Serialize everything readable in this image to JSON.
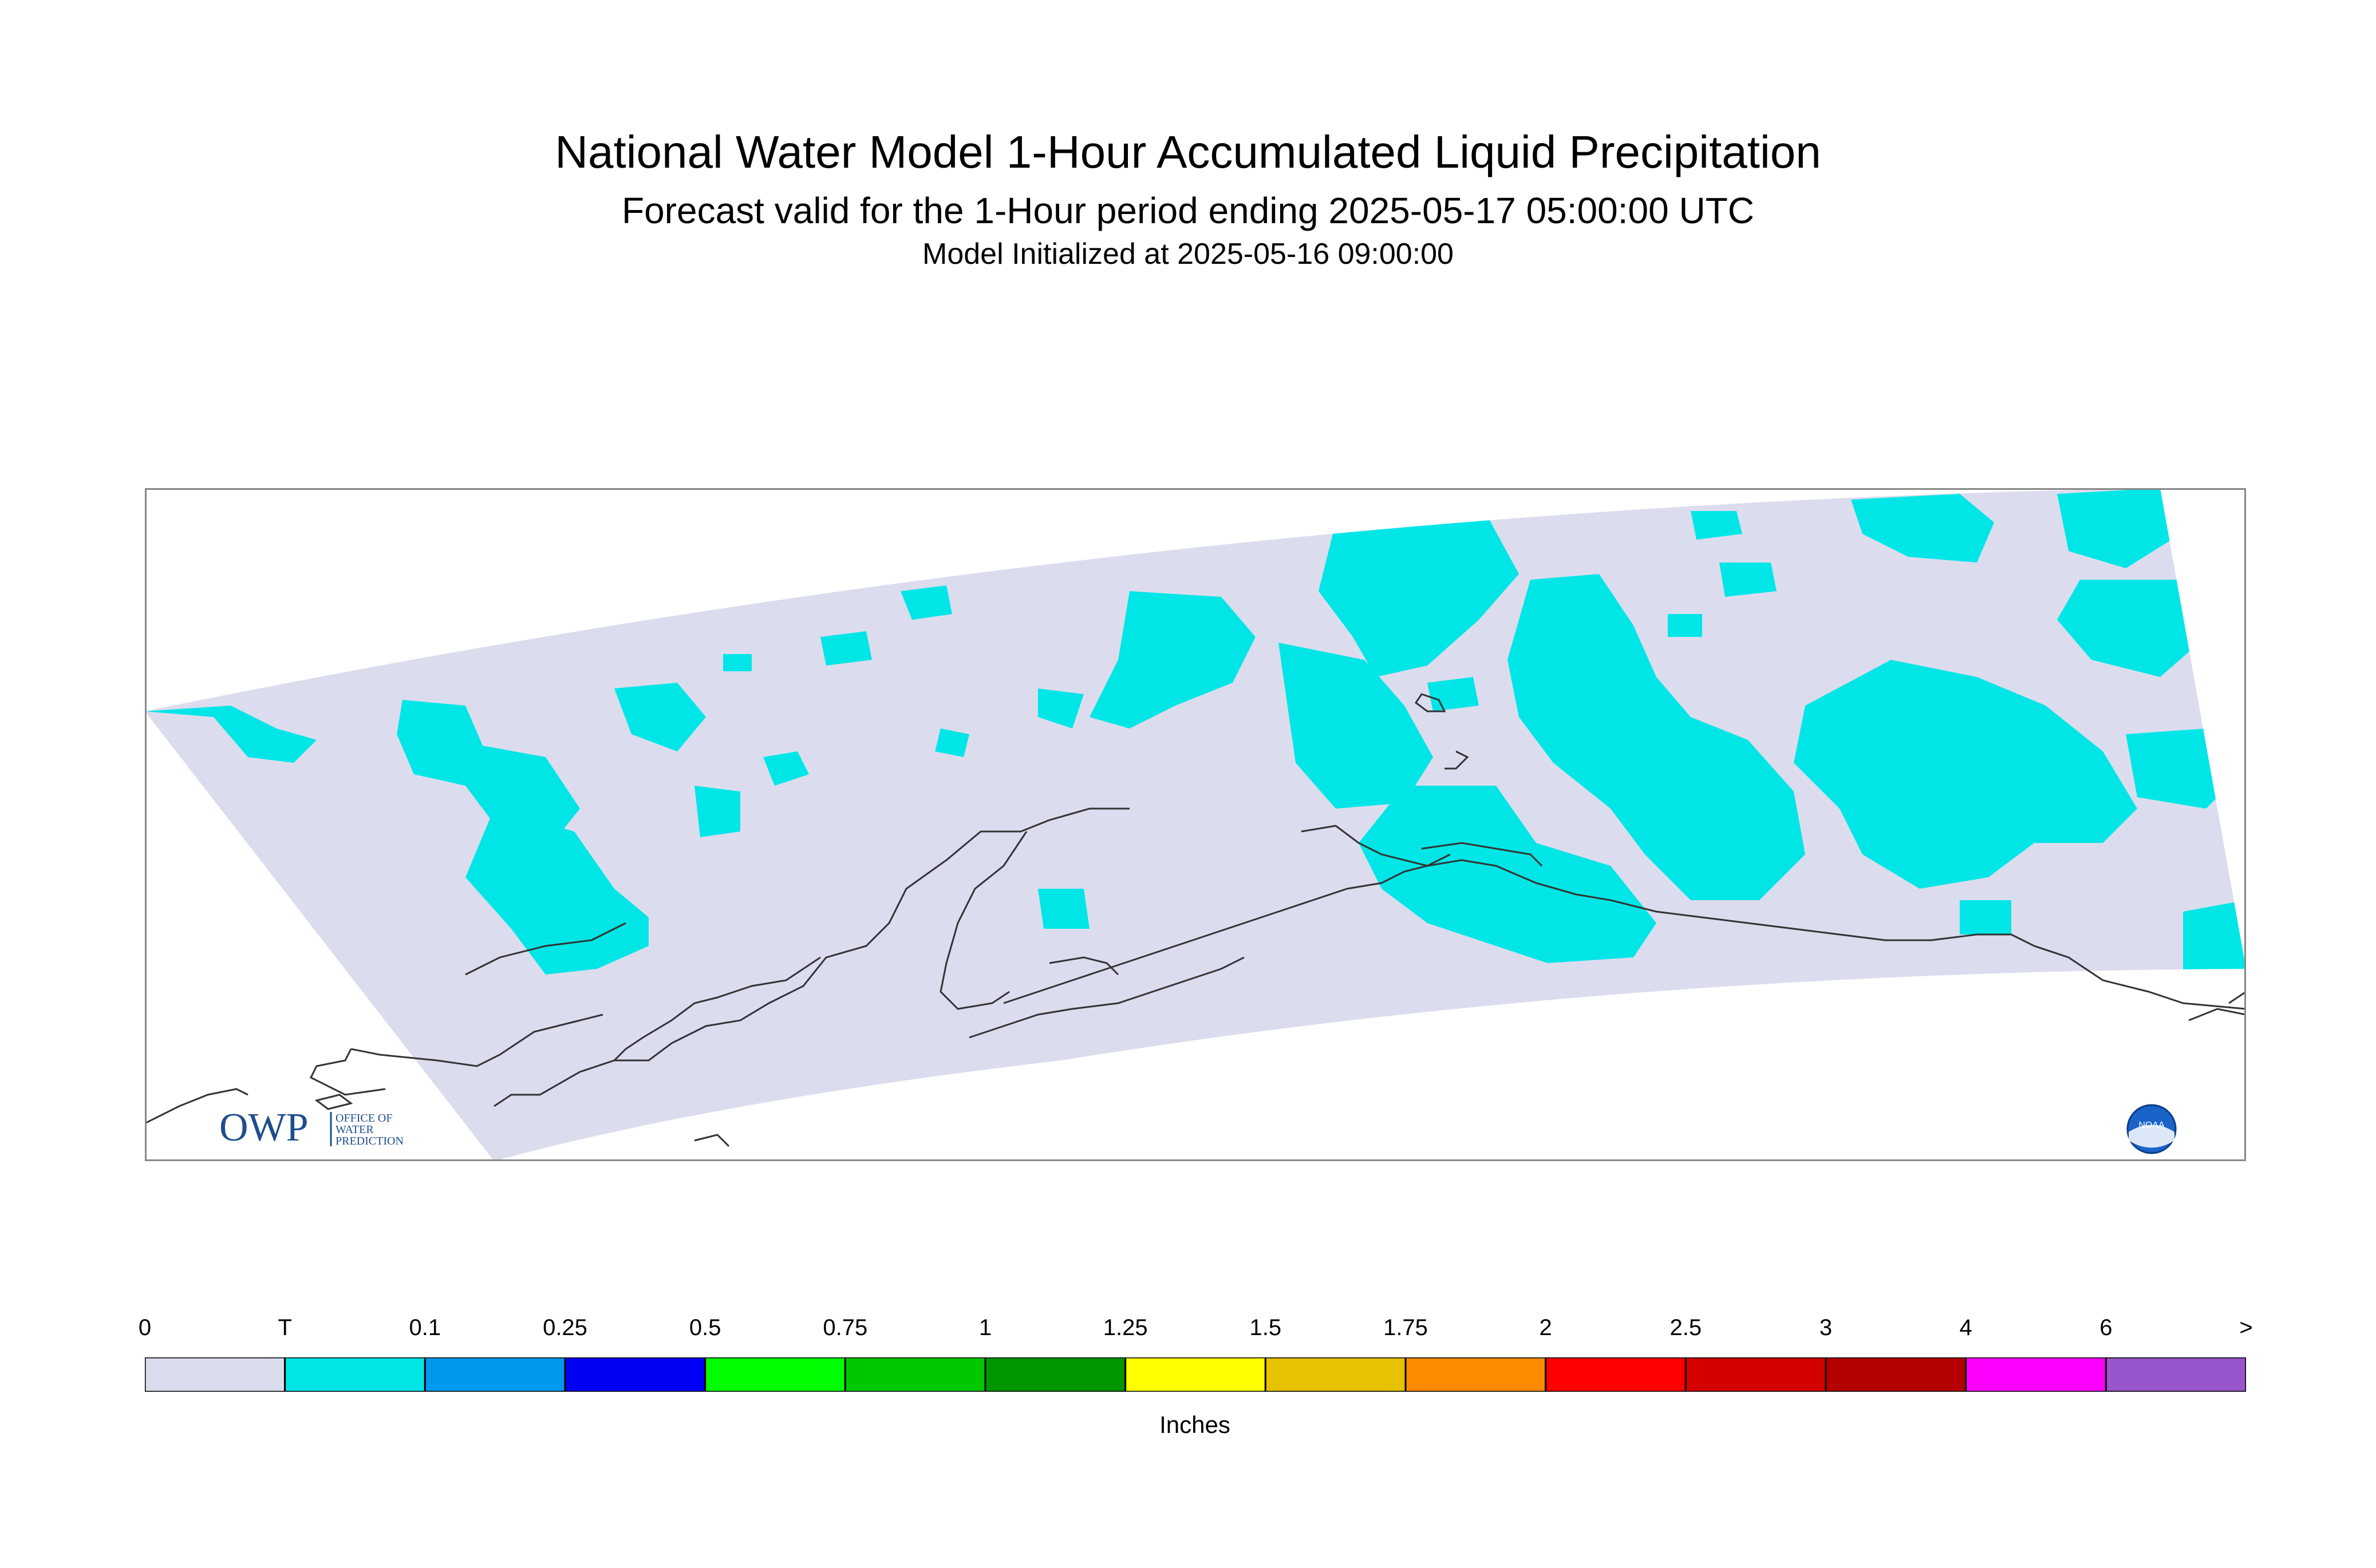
{
  "title": {
    "line1": "National Water Model 1-Hour Accumulated Liquid Precipitation",
    "line2": "Forecast valid for the 1-Hour period ending 2025-05-17 05:00:00 UTC",
    "line3": "Model Initialized at 2025-05-16 09:00:00"
  },
  "colors": {
    "domain_fill": "#dcdcef",
    "precip_trace": "#00e6e6",
    "coastline": "#333333",
    "frame": "#888888"
  },
  "logos": {
    "owp_text": "OWP",
    "owp_sub1": "OFFICE OF",
    "owp_sub2": "WATER",
    "owp_sub3": "PREDICTION",
    "noaa_text": "NOAA"
  },
  "legend": {
    "units": "Inches",
    "labels": [
      "0",
      "T",
      "0.1",
      "0.25",
      "0.5",
      "0.75",
      "1",
      "1.25",
      "1.5",
      "1.75",
      "2",
      "2.5",
      "3",
      "4",
      "6",
      ">"
    ],
    "colors": [
      "#dcdcef",
      "#00e6e6",
      "#0099f0",
      "#0000f5",
      "#00ff00",
      "#00c800",
      "#009600",
      "#ffff00",
      "#e6c200",
      "#ff8c00",
      "#ff0000",
      "#d40000",
      "#b40000",
      "#ff00ff",
      "#9955cc"
    ]
  }
}
